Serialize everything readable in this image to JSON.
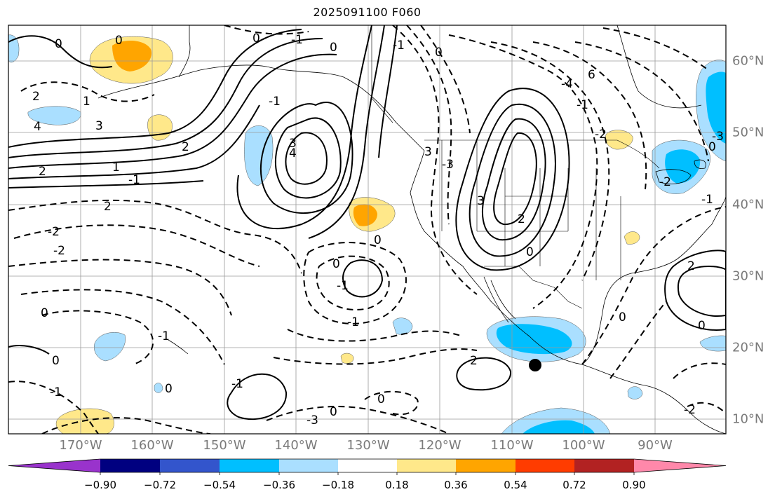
{
  "title": "2025091100 F060",
  "map": {
    "projection": "lat-lon",
    "lon_range_deg": [
      -180,
      -80
    ],
    "lat_range_deg": [
      8,
      65
    ],
    "gridlines": true,
    "coastlines": true,
    "borders": true,
    "contour_style": "solid positive, dashed negative, black",
    "marker": {
      "type": "filled-circle",
      "color": "#000000",
      "lat_deg": 17.5,
      "lon_deg": -106.5
    },
    "lon_labels": [
      "170°W",
      "160°W",
      "150°W",
      "140°W",
      "130°W",
      "120°W",
      "110°W",
      "100°W",
      "90°W"
    ],
    "lat_labels": [
      "60°N",
      "50°N",
      "40°N",
      "30°N",
      "20°N",
      "10°N"
    ],
    "contour_labels": [
      "0",
      "0",
      "0",
      "2",
      "1",
      "4",
      "3",
      "2",
      "1",
      "2",
      "2",
      "-1",
      "-1",
      "0",
      "-1",
      "3",
      "4",
      "-1",
      "3",
      "-2",
      "-2",
      "0",
      "0",
      "-1",
      "-1",
      "0",
      "0",
      "-1",
      "2",
      "-1",
      "-3",
      "0",
      "6",
      "-4",
      "-1",
      "-2",
      "0",
      "0",
      "2",
      "0",
      "2",
      "-2",
      "0",
      "-2",
      "-1",
      "0",
      "-3",
      "3",
      "-3",
      "0",
      "0",
      "-1"
    ]
  },
  "colorbar": {
    "colors": [
      "#9933cc",
      "#000080",
      "#3355cc",
      "#00bfff",
      "#aadfff",
      "#ffffff",
      "#ffe88a",
      "#ffa500",
      "#ff3c00",
      "#b22222",
      "#ff88aa"
    ],
    "tick_labels": [
      "−0.90",
      "−0.72",
      "−0.54",
      "−0.36",
      "−0.18",
      "0.18",
      "0.36",
      "0.54",
      "0.72",
      "0.90"
    ],
    "extend": "both"
  }
}
